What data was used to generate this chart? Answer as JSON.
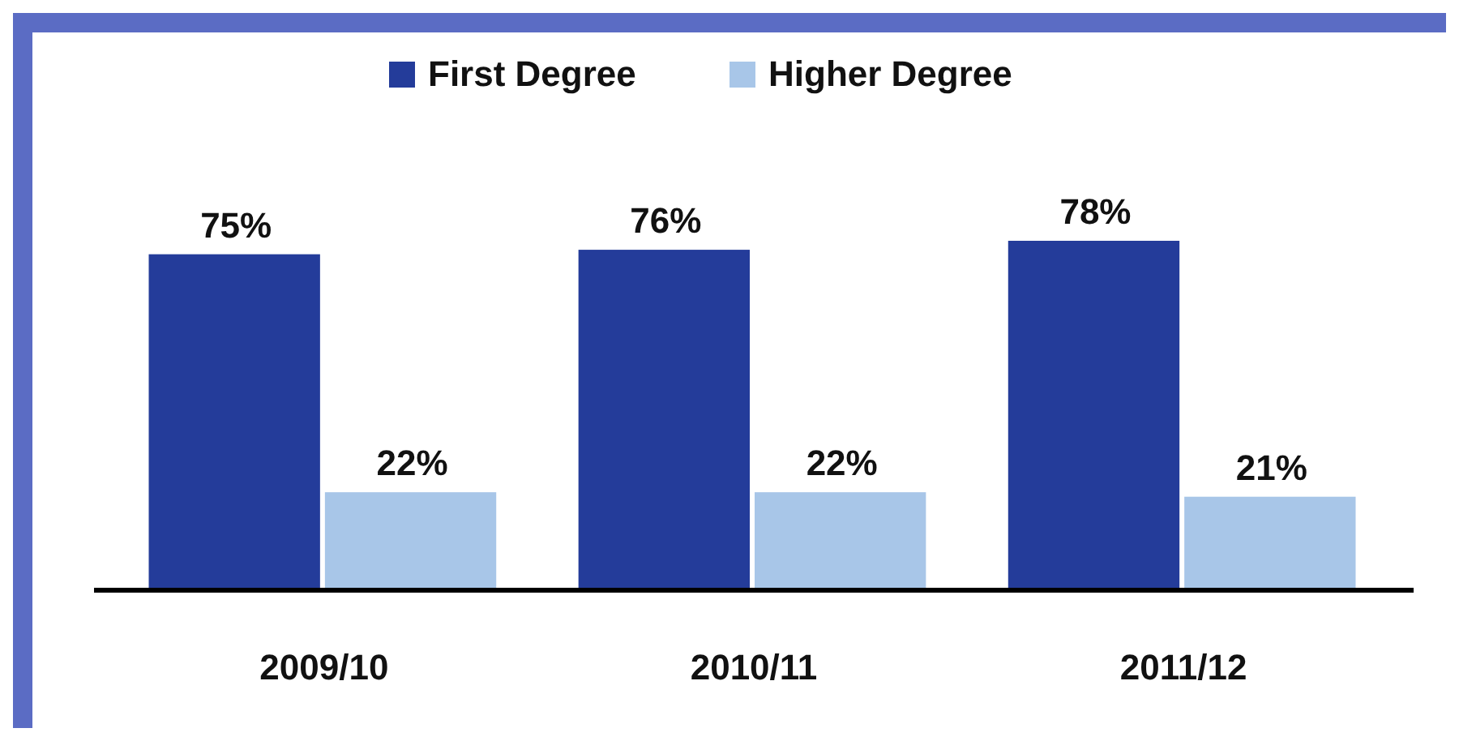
{
  "chart_data": {
    "type": "bar",
    "categories": [
      "2009/10",
      "2010/11",
      "2011/12"
    ],
    "series": [
      {
        "name": "First Degree",
        "color": "#243c9a",
        "values": [
          75,
          76,
          78
        ],
        "value_labels": [
          "75%",
          "76%",
          "78%"
        ]
      },
      {
        "name": "Higher Degree",
        "color": "#a8c6e8",
        "values": [
          22,
          22,
          21
        ],
        "value_labels": [
          "22%",
          "22%",
          "21%"
        ]
      }
    ],
    "legend": "top",
    "grid": false
  }
}
